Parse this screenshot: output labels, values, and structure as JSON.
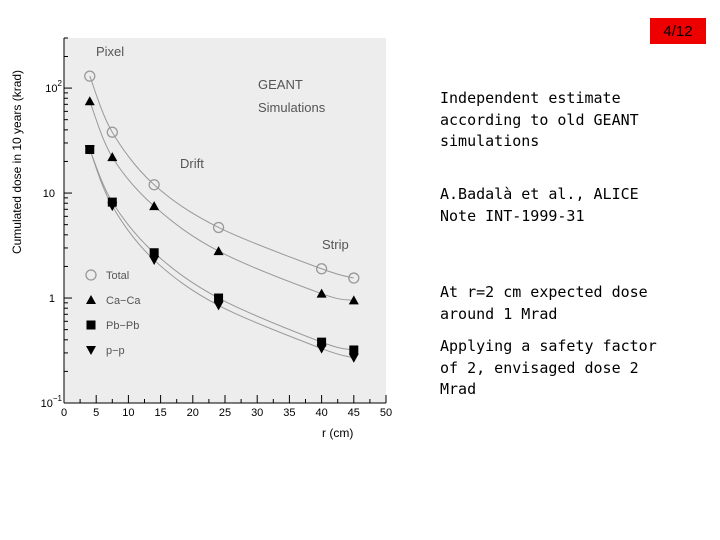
{
  "page_number": "4/12",
  "notes": {
    "p1": "Independent estimate according to old GEANT simulations",
    "p2": "A.Badalà et al., ALICE Note INT-1999-31",
    "p3": "At r=2 cm expected dose around 1 Mrad",
    "p4": "Applying a safety factor of 2, envisaged dose 2 Mrad"
  },
  "colors": {
    "page_badge": "#ee0000",
    "plot_bg": "#ededed",
    "curve": "#999999"
  },
  "chart_data": {
    "type": "scatter",
    "xlabel": "r (cm)",
    "ylabel": "Cumulated dose in 10 years (krad)",
    "xlim": [
      0,
      50
    ],
    "ylim": [
      0.1,
      300
    ],
    "yscale": "log",
    "x_ticks": [
      "0",
      "5",
      "10",
      "15",
      "20",
      "25",
      "30",
      "35",
      "40",
      "45",
      "50"
    ],
    "y_ticks": [
      {
        "value": 100,
        "base": "10",
        "exp": "2"
      },
      {
        "value": 10,
        "base": "10",
        "exp": ""
      },
      {
        "value": 1,
        "base": "1",
        "exp": ""
      },
      {
        "value": 0.1,
        "base": "10",
        "exp": "−1"
      }
    ],
    "annotations": [
      "Pixel",
      "GEANT",
      "Simulations",
      "Drift",
      "Strip"
    ],
    "series": [
      {
        "name": "Total",
        "marker": "circle-open",
        "x": [
          4,
          7.5,
          14,
          24,
          40,
          45
        ],
        "y": [
          130,
          38,
          12,
          4.7,
          1.9,
          1.55
        ]
      },
      {
        "name": "Ca−Ca",
        "marker": "triangle-up",
        "x": [
          4,
          7.5,
          14,
          24,
          40,
          45
        ],
        "y": [
          75,
          22,
          7.5,
          2.8,
          1.1,
          0.95
        ]
      },
      {
        "name": "Pb−Pb",
        "marker": "square",
        "x": [
          4,
          7.5,
          14,
          24,
          40,
          45
        ],
        "y": [
          26,
          8.2,
          2.7,
          1.0,
          0.38,
          0.32
        ]
      },
      {
        "name": "p−p",
        "marker": "triangle-down",
        "x": [
          4,
          7.5,
          14,
          24,
          40,
          45
        ],
        "y": [
          26,
          7.5,
          2.3,
          0.85,
          0.33,
          0.27
        ]
      }
    ],
    "grid": false,
    "legend_position": "bottom-left"
  }
}
